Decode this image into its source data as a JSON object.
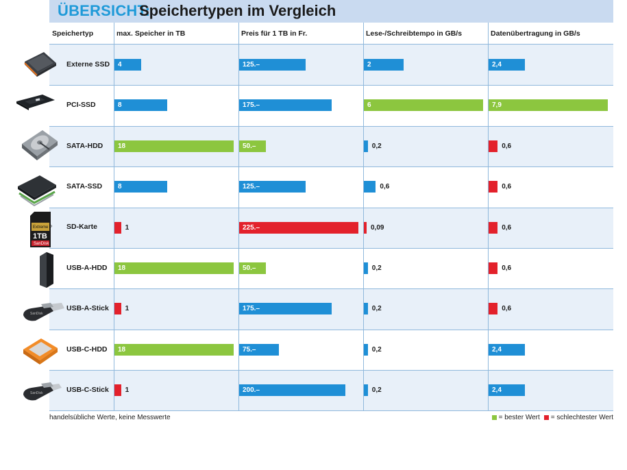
{
  "title": {
    "kicker": "ÜBERSICHT:",
    "main": "Speichertypen im Vergleich"
  },
  "footnote": "handelsübliche Werte, keine Messwerte",
  "legend": [
    {
      "label": "= bester Wert",
      "color": "#8cc63f"
    },
    {
      "label": "= schlechtester Wert",
      "color": "#e3212b"
    }
  ],
  "colors": {
    "blue": "#1f8fd6",
    "best": "#8cc63f",
    "worst": "#e3212b"
  },
  "chart_data": {
    "type": "table",
    "title": "Speichertypen im Vergleich",
    "columns": [
      "Speichertyp",
      "max. Speicher in TB",
      "Preis für 1 TB in Fr.",
      "Lese-/Schreibtempo in GB/s",
      "Datenübertragung in GB/s"
    ],
    "rows": [
      {
        "name": "Externe SSD",
        "icon": "external-ssd-icon",
        "cells": [
          {
            "label": "4",
            "value": 4,
            "color": "blue"
          },
          {
            "label": "125.–",
            "value": 125,
            "color": "blue"
          },
          {
            "label": "2",
            "value": 2,
            "color": "blue"
          },
          {
            "label": "2,4",
            "value": 2.4,
            "color": "blue"
          }
        ]
      },
      {
        "name": "PCI-SSD",
        "icon": "pci-ssd-icon",
        "cells": [
          {
            "label": "8",
            "value": 8,
            "color": "blue"
          },
          {
            "label": "175.–",
            "value": 175,
            "color": "blue"
          },
          {
            "label": "6",
            "value": 6,
            "color": "best"
          },
          {
            "label": "7,9",
            "value": 7.9,
            "color": "best"
          }
        ]
      },
      {
        "name": "SATA-HDD",
        "icon": "sata-hdd-icon",
        "cells": [
          {
            "label": "18",
            "value": 18,
            "color": "best"
          },
          {
            "label": "50.–",
            "value": 50,
            "color": "best"
          },
          {
            "label": "0,2",
            "value": 0.2,
            "color": "blue"
          },
          {
            "label": "0,6",
            "value": 0.6,
            "color": "worst"
          }
        ]
      },
      {
        "name": "SATA-SSD",
        "icon": "sata-ssd-icon",
        "cells": [
          {
            "label": "8",
            "value": 8,
            "color": "blue"
          },
          {
            "label": "125.–",
            "value": 125,
            "color": "blue"
          },
          {
            "label": "0,6",
            "value": 0.6,
            "color": "blue"
          },
          {
            "label": "0,6",
            "value": 0.6,
            "color": "worst"
          }
        ]
      },
      {
        "name": "SD-Karte",
        "icon": "sd-card-icon",
        "cells": [
          {
            "label": "1",
            "value": 1,
            "color": "worst"
          },
          {
            "label": "225.–",
            "value": 225,
            "color": "worst"
          },
          {
            "label": "0,09",
            "value": 0.09,
            "color": "worst"
          },
          {
            "label": "0,6",
            "value": 0.6,
            "color": "worst"
          }
        ]
      },
      {
        "name": "USB-A-HDD",
        "icon": "usb-a-hdd-icon",
        "cells": [
          {
            "label": "18",
            "value": 18,
            "color": "best"
          },
          {
            "label": "50.–",
            "value": 50,
            "color": "best"
          },
          {
            "label": "0,2",
            "value": 0.2,
            "color": "blue"
          },
          {
            "label": "0,6",
            "value": 0.6,
            "color": "worst"
          }
        ]
      },
      {
        "name": "USB-A-Stick",
        "icon": "usb-a-stick-icon",
        "cells": [
          {
            "label": "1",
            "value": 1,
            "color": "worst"
          },
          {
            "label": "175.–",
            "value": 175,
            "color": "blue"
          },
          {
            "label": "0,2",
            "value": 0.2,
            "color": "blue"
          },
          {
            "label": "0,6",
            "value": 0.6,
            "color": "worst"
          }
        ]
      },
      {
        "name": "USB-C-HDD",
        "icon": "usb-c-hdd-icon",
        "cells": [
          {
            "label": "18",
            "value": 18,
            "color": "best"
          },
          {
            "label": "75.–",
            "value": 75,
            "color": "blue"
          },
          {
            "label": "0,2",
            "value": 0.2,
            "color": "blue"
          },
          {
            "label": "2,4",
            "value": 2.4,
            "color": "blue"
          }
        ]
      },
      {
        "name": "USB-C-Stick",
        "icon": "usb-c-stick-icon",
        "cells": [
          {
            "label": "1",
            "value": 1,
            "color": "worst"
          },
          {
            "label": "200.–",
            "value": 200,
            "color": "blue"
          },
          {
            "label": "0,2",
            "value": 0.2,
            "color": "blue"
          },
          {
            "label": "2,4",
            "value": 2.4,
            "color": "blue"
          }
        ]
      }
    ]
  }
}
